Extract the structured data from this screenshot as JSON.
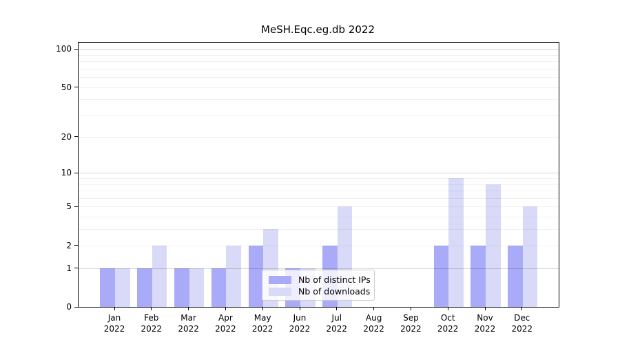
{
  "chart_data": {
    "type": "bar",
    "title": "MeSH.Eqc.eg.db 2022",
    "categories": [
      "Jan",
      "Feb",
      "Mar",
      "Apr",
      "May",
      "Jun",
      "Jul",
      "Aug",
      "Sep",
      "Oct",
      "Nov",
      "Dec"
    ],
    "category_year": "2022",
    "series": [
      {
        "name": "Nb of distinct IPs",
        "color": "#a9abf8",
        "values": [
          1,
          1,
          1,
          1,
          2,
          1,
          2,
          0,
          0,
          2,
          2,
          2
        ]
      },
      {
        "name": "Nb of downloads",
        "color": "#d9daf8",
        "values": [
          1,
          2,
          1,
          2,
          3,
          1,
          5,
          0,
          0,
          9,
          8,
          5
        ]
      }
    ],
    "yscale": "log1p",
    "ylim": [
      0,
      112
    ],
    "yticks": [
      0,
      1,
      2,
      5,
      10,
      20,
      50,
      100
    ],
    "gridlines": {
      "major": [
        1,
        10,
        100
      ],
      "minor": [
        2,
        3,
        4,
        5,
        6,
        7,
        8,
        9,
        20,
        30,
        40,
        50,
        60,
        70,
        80,
        90
      ]
    },
    "grid": true,
    "legend_position": "lower center"
  }
}
